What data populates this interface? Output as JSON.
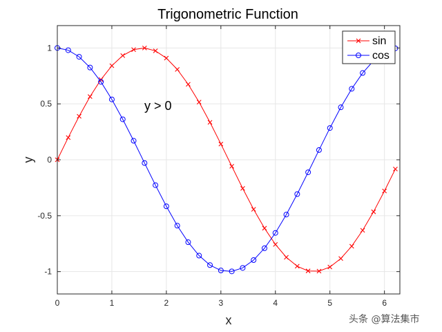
{
  "chart_data": {
    "type": "line",
    "title": "Trigonometric Function",
    "xlabel": "x",
    "ylabel": "y",
    "xlim": [
      0,
      6.283
    ],
    "ylim": [
      -1.2,
      1.2
    ],
    "xticks": [
      0,
      1,
      2,
      3,
      4,
      5,
      6
    ],
    "yticks": [
      -1,
      -0.5,
      0,
      0.5,
      1
    ],
    "xtick_labels": [
      "0",
      "1",
      "2",
      "3",
      "4",
      "5",
      "6"
    ],
    "ytick_labels": [
      "-1",
      "-0.5",
      "0",
      "0.5",
      "1"
    ],
    "grid": true,
    "legend_position": "top-right",
    "annotation": {
      "text": "y > 0",
      "x": 1.6,
      "y": 0.48
    },
    "x": [
      0,
      0.2,
      0.4,
      0.6,
      0.8,
      1.0,
      1.2,
      1.4,
      1.6,
      1.8,
      2.0,
      2.2,
      2.4,
      2.6,
      2.8,
      3.0,
      3.2,
      3.4,
      3.6,
      3.8,
      4.0,
      4.2,
      4.4,
      4.6,
      4.8,
      5.0,
      5.2,
      5.4,
      5.6,
      5.8,
      6.0,
      6.2
    ],
    "series": [
      {
        "name": "sin",
        "color": "#ff0000",
        "marker": "x",
        "values": [
          0,
          0.199,
          0.389,
          0.565,
          0.717,
          0.841,
          0.932,
          0.985,
          1.0,
          0.974,
          0.909,
          0.808,
          0.675,
          0.516,
          0.335,
          0.141,
          -0.058,
          -0.256,
          -0.443,
          -0.612,
          -0.757,
          -0.872,
          -0.952,
          -0.994,
          -0.996,
          -0.959,
          -0.883,
          -0.773,
          -0.631,
          -0.465,
          -0.279,
          -0.083
        ]
      },
      {
        "name": "cos",
        "color": "#0000ff",
        "marker": "o",
        "values": [
          1.0,
          0.98,
          0.921,
          0.825,
          0.697,
          0.54,
          0.362,
          0.17,
          -0.029,
          -0.227,
          -0.416,
          -0.589,
          -0.737,
          -0.857,
          -0.942,
          -0.99,
          -0.998,
          -0.967,
          -0.897,
          -0.791,
          -0.654,
          -0.49,
          -0.307,
          -0.112,
          0.087,
          0.284,
          0.469,
          0.635,
          0.776,
          0.886,
          0.96,
          0.997
        ]
      }
    ]
  },
  "watermark": "头条 @算法集市"
}
